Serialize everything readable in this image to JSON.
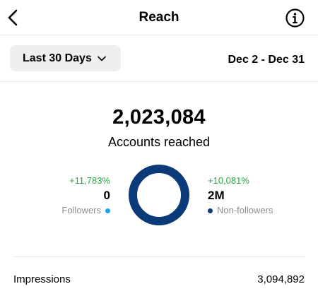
{
  "header": {
    "title": "Reach",
    "back_icon": "chevron-left-icon",
    "info_icon": "info-icon"
  },
  "range": {
    "selected": "Last 30 Days",
    "dates": "Dec 2 - Dec 31"
  },
  "summary": {
    "value": "2,023,084",
    "label": "Accounts reached"
  },
  "followers": {
    "change": "+11,783%",
    "count": "0",
    "label": "Followers",
    "color": "#1ea0f0"
  },
  "non_followers": {
    "change": "+10,081%",
    "count": "2M",
    "label": "Non-followers",
    "color": "#0a3a78"
  },
  "donut": {
    "followers_share": 0.0,
    "non_followers_share": 1.0
  },
  "impressions": {
    "label": "Impressions",
    "value": "3,094,892"
  }
}
